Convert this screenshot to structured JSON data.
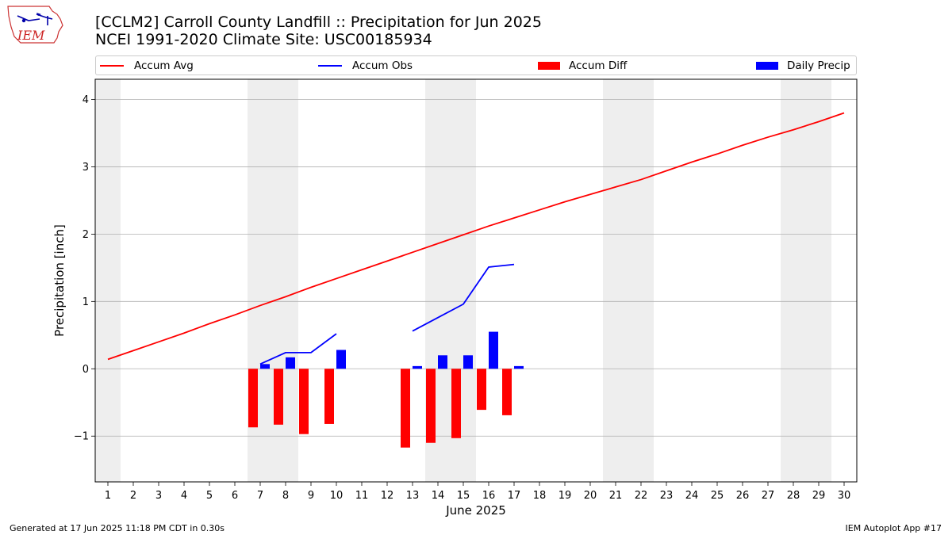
{
  "header": {
    "logo_text": "IEM",
    "title_line1": "[CCLM2] Carroll County Landfill :: Precipitation for Jun 2025",
    "title_line2": "NCEI 1991-2020 Climate Site: USC00185934"
  },
  "footer": {
    "generated": "Generated at 17 Jun 2025 11:18 PM CDT in 0.30s",
    "app": "IEM Autoplot App #17"
  },
  "colors": {
    "avg": "#ff0000",
    "obs": "#0000ff",
    "diff": "#ff0000",
    "daily": "#0000ff",
    "weekend_band": "#eeeeee",
    "grid": "#b0b0b0"
  },
  "chart_data": {
    "type": "bar",
    "xlabel": "June 2025",
    "ylabel": "Precipitation [inch]",
    "xlim": [
      0.5,
      30.5
    ],
    "ylim": [
      -1.68,
      4.3
    ],
    "yticks": [
      -1,
      0,
      1,
      2,
      3,
      4
    ],
    "ytick_labels": [
      "−1",
      "0",
      "1",
      "2",
      "3",
      "4"
    ],
    "x_tick_labels": [
      "1",
      "2",
      "3",
      "4",
      "5",
      "6",
      "7",
      "8",
      "9",
      "10",
      "11",
      "12",
      "13",
      "14",
      "15",
      "16",
      "17",
      "18",
      "19",
      "20",
      "21",
      "22",
      "23",
      "24",
      "25",
      "26",
      "27",
      "28",
      "29",
      "30"
    ],
    "grid": "horizontal",
    "legend_position": "top",
    "weekend_bands": [
      [
        0.5,
        1.5
      ],
      [
        6.5,
        8.5
      ],
      [
        13.5,
        15.5
      ],
      [
        20.5,
        22.5
      ],
      [
        27.5,
        29.5
      ]
    ],
    "series": [
      {
        "name": "Accum Avg",
        "kind": "line",
        "x": [
          1,
          2,
          3,
          4,
          5,
          6,
          7,
          8,
          9,
          10,
          11,
          12,
          13,
          14,
          15,
          16,
          17,
          18,
          19,
          20,
          21,
          22,
          23,
          24,
          25,
          26,
          27,
          28,
          29,
          30
        ],
        "values": [
          0.14,
          0.27,
          0.4,
          0.53,
          0.67,
          0.8,
          0.94,
          1.07,
          1.21,
          1.34,
          1.47,
          1.6,
          1.73,
          1.86,
          1.99,
          2.12,
          2.24,
          2.36,
          2.48,
          2.59,
          2.7,
          2.81,
          2.94,
          3.07,
          3.19,
          3.32,
          3.44,
          3.55,
          3.67,
          3.8
        ]
      },
      {
        "name": "Accum Obs",
        "kind": "line",
        "segments": [
          {
            "x": [
              7,
              8,
              9,
              10
            ],
            "values": [
              0.07,
              0.24,
              0.24,
              0.52
            ]
          },
          {
            "x": [
              13,
              14,
              15,
              16,
              17
            ],
            "values": [
              0.56,
              0.76,
              0.96,
              1.51,
              1.55
            ]
          }
        ]
      },
      {
        "name": "Accum Diff",
        "kind": "bar",
        "x": [
          7,
          8,
          9,
          10,
          13,
          14,
          15,
          16,
          17
        ],
        "values": [
          -0.87,
          -0.83,
          -0.97,
          -0.82,
          -1.17,
          -1.1,
          -1.03,
          -0.61,
          -0.69
        ]
      },
      {
        "name": "Daily Precip",
        "kind": "bar",
        "x": [
          7,
          8,
          9,
          10,
          13,
          14,
          15,
          16,
          17
        ],
        "values": [
          0.07,
          0.17,
          0.0,
          0.28,
          0.04,
          0.2,
          0.2,
          0.55,
          0.04
        ]
      }
    ]
  }
}
